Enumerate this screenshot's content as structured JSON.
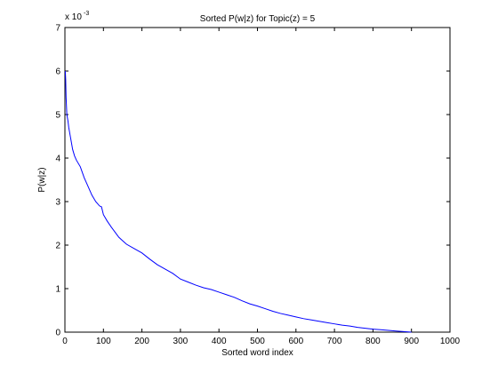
{
  "chart_data": {
    "type": "line",
    "title": "Sorted P(w|z) for Topic(z) = 5",
    "xlabel": "Sorted word index",
    "ylabel": "P(w|z)",
    "y_exponent_prefix": "x 10",
    "y_exponent": "-3",
    "xlim": [
      0,
      1000
    ],
    "ylim": [
      0,
      7
    ],
    "xticks": [
      0,
      100,
      200,
      300,
      400,
      500,
      600,
      700,
      800,
      900,
      1000
    ],
    "yticks": [
      0,
      1,
      2,
      3,
      4,
      5,
      6,
      7
    ],
    "grid": false,
    "line_color": "#0000ff",
    "series": [
      {
        "x": [
          1,
          2,
          3,
          5,
          8,
          10,
          15,
          20,
          25,
          30,
          40,
          50,
          60,
          70,
          80,
          90,
          95,
          100,
          110,
          120,
          130,
          140,
          150,
          160,
          180,
          200,
          220,
          240,
          260,
          280,
          300,
          320,
          340,
          360,
          380,
          400,
          420,
          440,
          460,
          480,
          500,
          520,
          540,
          560,
          580,
          600,
          620,
          640,
          660,
          680,
          700,
          720,
          740,
          760,
          780,
          800,
          820,
          840,
          860,
          880,
          900
        ],
        "y": [
          6.0,
          5.8,
          5.4,
          5.0,
          4.85,
          4.7,
          4.45,
          4.2,
          4.05,
          3.95,
          3.8,
          3.55,
          3.35,
          3.15,
          3.0,
          2.9,
          2.88,
          2.7,
          2.55,
          2.42,
          2.3,
          2.18,
          2.1,
          2.02,
          1.92,
          1.82,
          1.68,
          1.55,
          1.45,
          1.35,
          1.22,
          1.15,
          1.08,
          1.02,
          0.98,
          0.92,
          0.86,
          0.8,
          0.72,
          0.65,
          0.6,
          0.54,
          0.48,
          0.43,
          0.39,
          0.35,
          0.31,
          0.28,
          0.25,
          0.22,
          0.19,
          0.16,
          0.14,
          0.11,
          0.09,
          0.07,
          0.055,
          0.04,
          0.025,
          0.012,
          0.0
        ]
      }
    ]
  }
}
